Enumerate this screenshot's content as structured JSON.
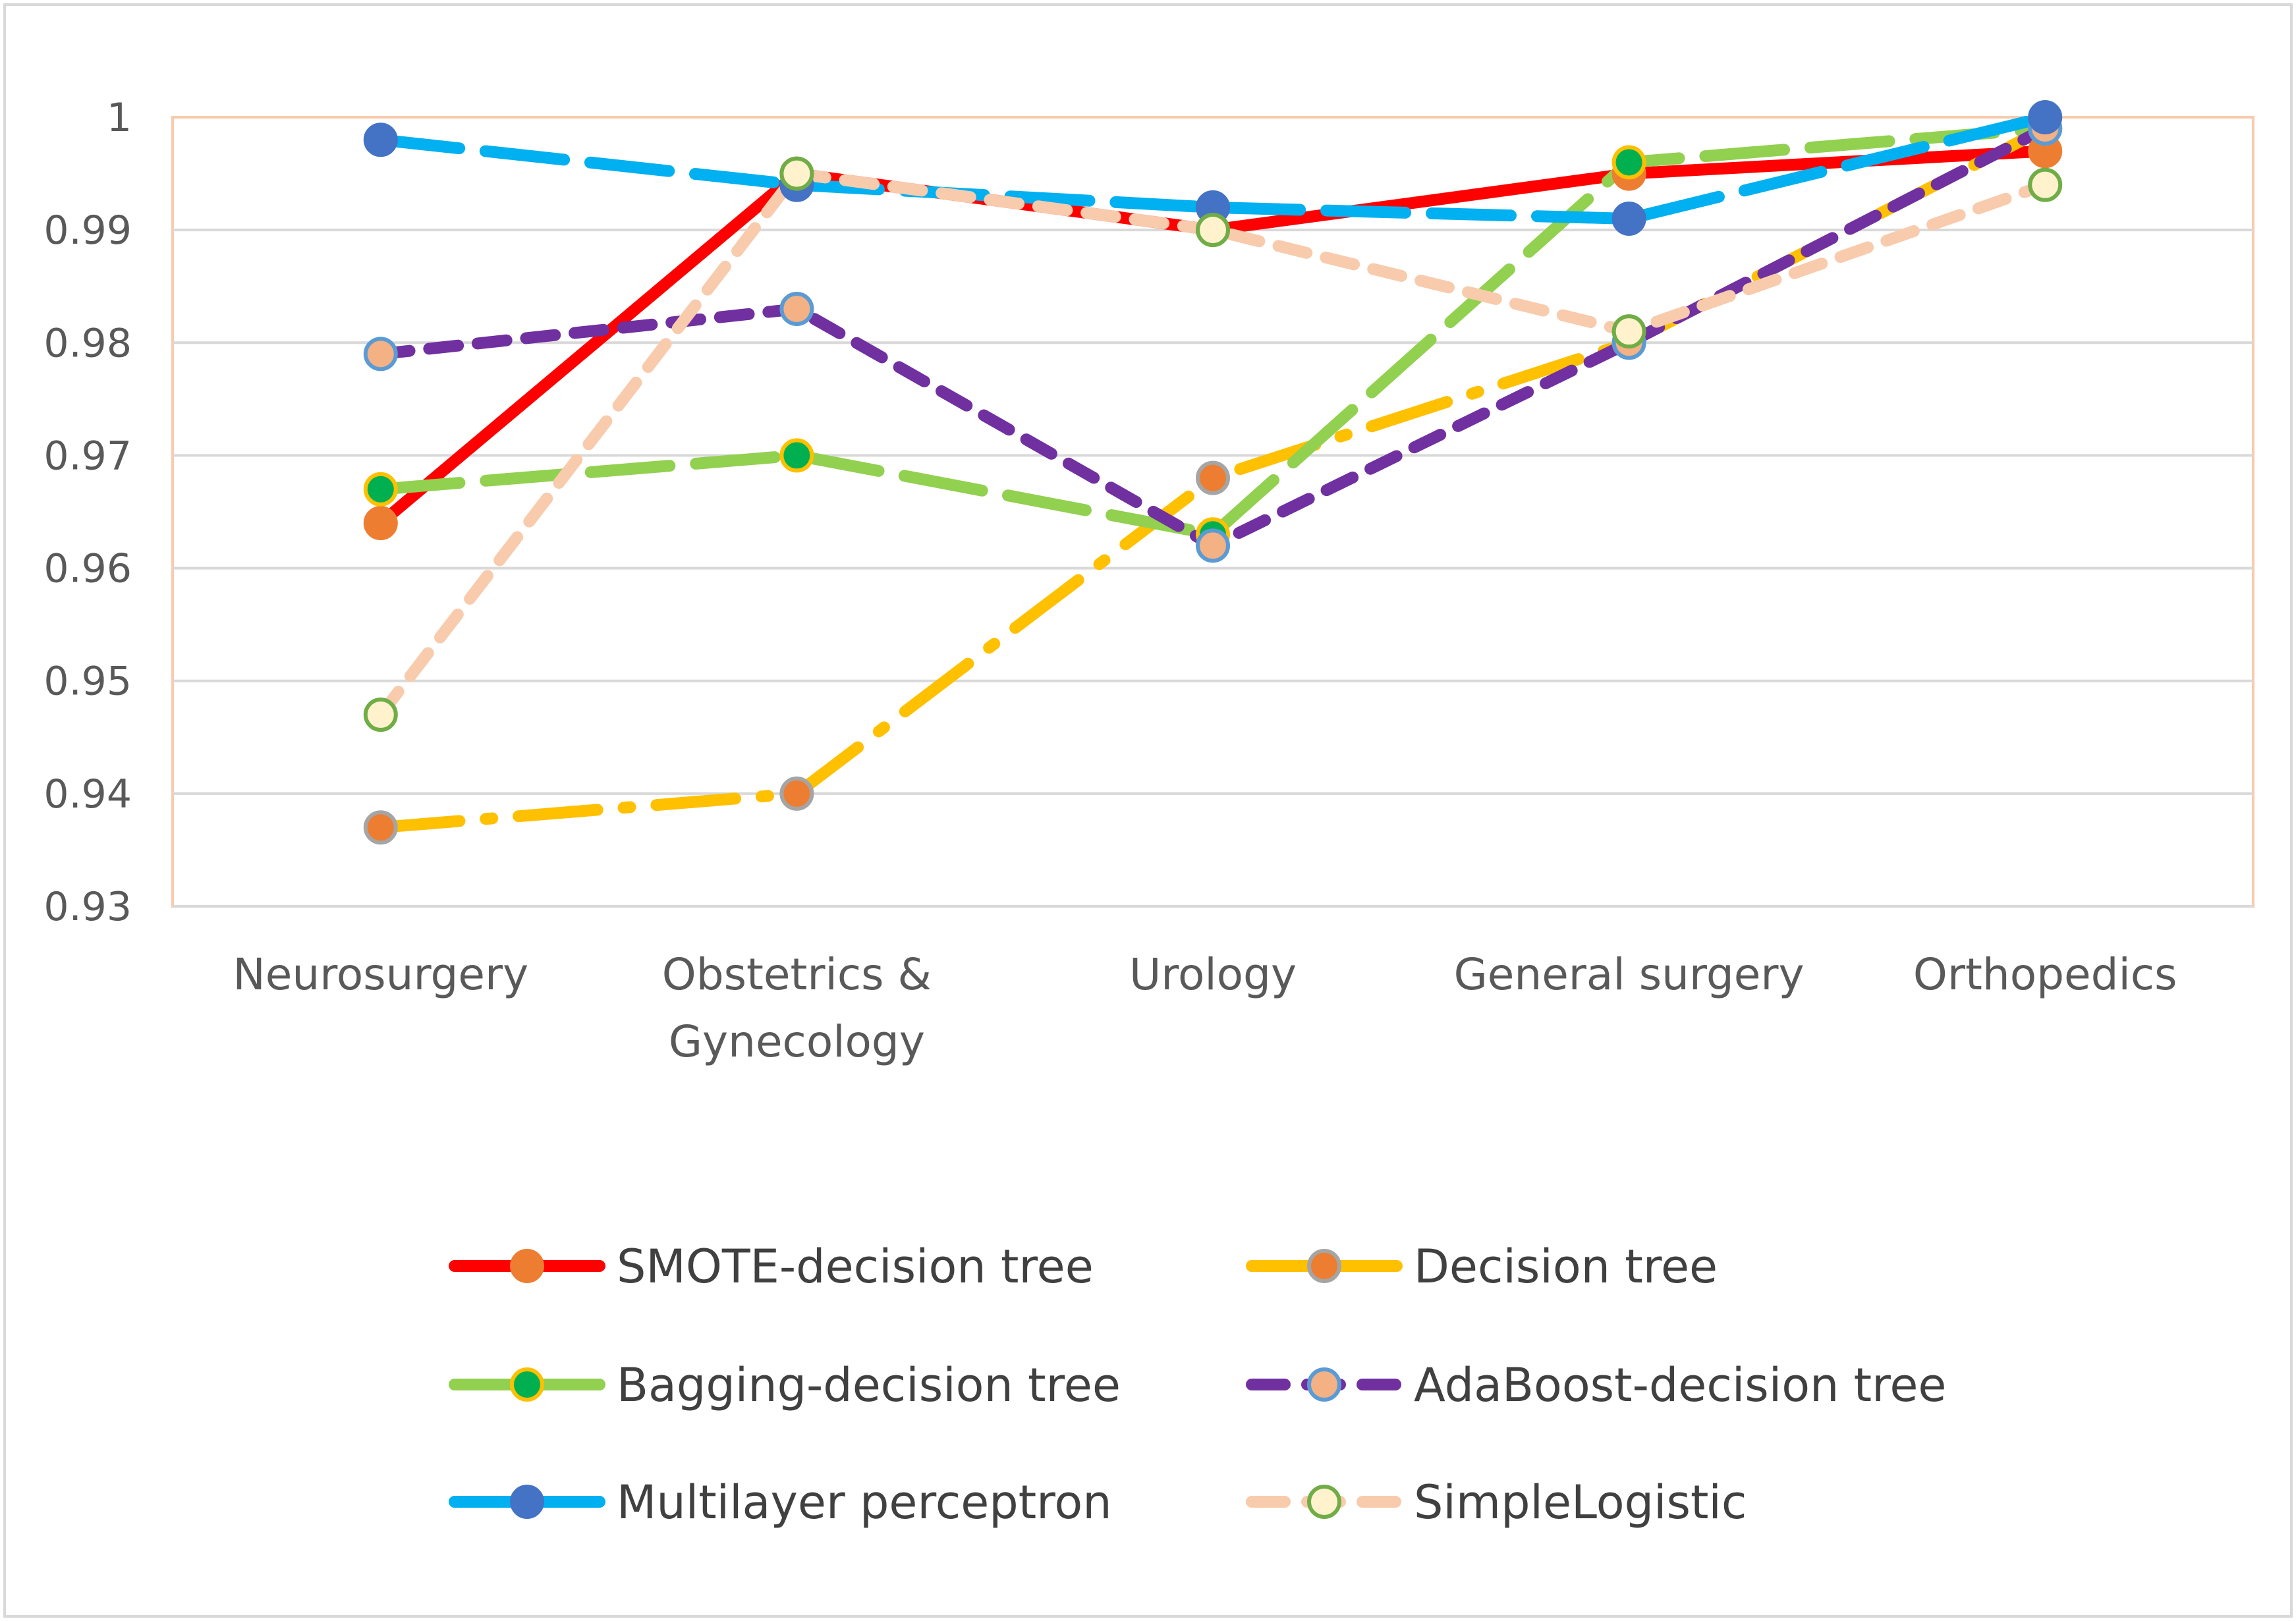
{
  "chart_data": {
    "type": "line",
    "categories": [
      [
        "Neurosurgery"
      ],
      [
        "Obstetrics &",
        "Gynecology"
      ],
      [
        "Urology"
      ],
      [
        "General surgery"
      ],
      [
        "Orthopedics"
      ]
    ],
    "ylim": [
      0.93,
      1
    ],
    "yticks": [
      0.93,
      0.94,
      0.95,
      0.96,
      0.97,
      0.98,
      0.99,
      1
    ],
    "ytick_labels": [
      "0.93",
      "0.94",
      "0.95",
      "0.96",
      "0.97",
      "0.98",
      "0.99",
      "1"
    ],
    "grid": true,
    "legend_position": "bottom",
    "series": [
      {
        "name": "SMOTE-decision tree",
        "values": [
          0.964,
          0.995,
          0.99,
          0.995,
          0.997
        ],
        "line_color": "#ff0000",
        "marker_fill": "#ed7d31",
        "marker_stroke": "#ed7d31",
        "dash": "solid"
      },
      {
        "name": "Decision tree",
        "values": [
          0.937,
          0.94,
          0.968,
          0.98,
          0.999
        ],
        "line_color": "#ffc000",
        "marker_fill": "#ed7d31",
        "marker_stroke": "#a5a5a5",
        "dash": "dash-dot"
      },
      {
        "name": "Bagging-decision tree",
        "values": [
          0.967,
          0.97,
          0.963,
          0.996,
          0.999
        ],
        "line_color": "#92d050",
        "marker_fill": "#00b050",
        "marker_stroke": "#ffc000",
        "dash": "long-dash"
      },
      {
        "name": "AdaBoost-decision tree",
        "values": [
          0.979,
          0.983,
          0.962,
          0.98,
          0.999
        ],
        "line_color": "#7030a0",
        "marker_fill": "#f4b183",
        "marker_stroke": "#5b9bd5",
        "dash": "dash"
      },
      {
        "name": "Multilayer perceptron",
        "values": [
          0.998,
          0.994,
          0.992,
          0.991,
          1.0
        ],
        "line_color": "#00b0f0",
        "marker_fill": "#4472c4",
        "marker_stroke": "#4472c4",
        "dash": "long-dash"
      },
      {
        "name": "SimpleLogistic",
        "values": [
          0.947,
          0.995,
          0.99,
          0.981,
          0.994
        ],
        "line_color": "#f8cbad",
        "marker_fill": "#fff2cc",
        "marker_stroke": "#70ad47",
        "dash": "dash"
      }
    ]
  }
}
